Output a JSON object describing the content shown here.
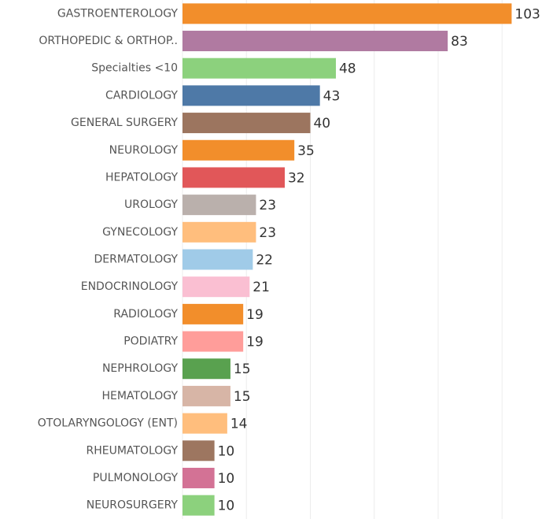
{
  "chart_data": {
    "type": "bar",
    "orientation": "horizontal",
    "categories": [
      "GASTROENTEROLOGY",
      "ORTHOPEDIC & ORTHOP..",
      "Specialties <10",
      "CARDIOLOGY",
      "GENERAL SURGERY",
      "NEUROLOGY",
      "HEPATOLOGY",
      "UROLOGY",
      "GYNECOLOGY",
      "DERMATOLOGY",
      "ENDOCRINOLOGY",
      "RADIOLOGY",
      "PODIATRY",
      "NEPHROLOGY",
      "HEMATOLOGY",
      "OTOLARYNGOLOGY (ENT)",
      "RHEUMATOLOGY",
      "PULMONOLOGY",
      "NEUROSURGERY"
    ],
    "values": [
      103,
      83,
      48,
      43,
      40,
      35,
      32,
      23,
      23,
      22,
      21,
      19,
      19,
      15,
      15,
      14,
      10,
      10,
      10
    ],
    "colors": [
      "#f28e2b",
      "#b07aa1",
      "#8cd17d",
      "#4e79a7",
      "#9c755f",
      "#f28e2b",
      "#e15759",
      "#bab0ac",
      "#ffbe7d",
      "#a0cbe8",
      "#fabfd2",
      "#f28e2b",
      "#ff9d9a",
      "#59a14f",
      "#d7b5a6",
      "#ffbe7d",
      "#9d7660",
      "#d37295",
      "#8cd17d"
    ],
    "xlim": [
      0,
      112.5
    ],
    "xticks": [
      0,
      20,
      40,
      60,
      80,
      100
    ],
    "grid": true
  }
}
